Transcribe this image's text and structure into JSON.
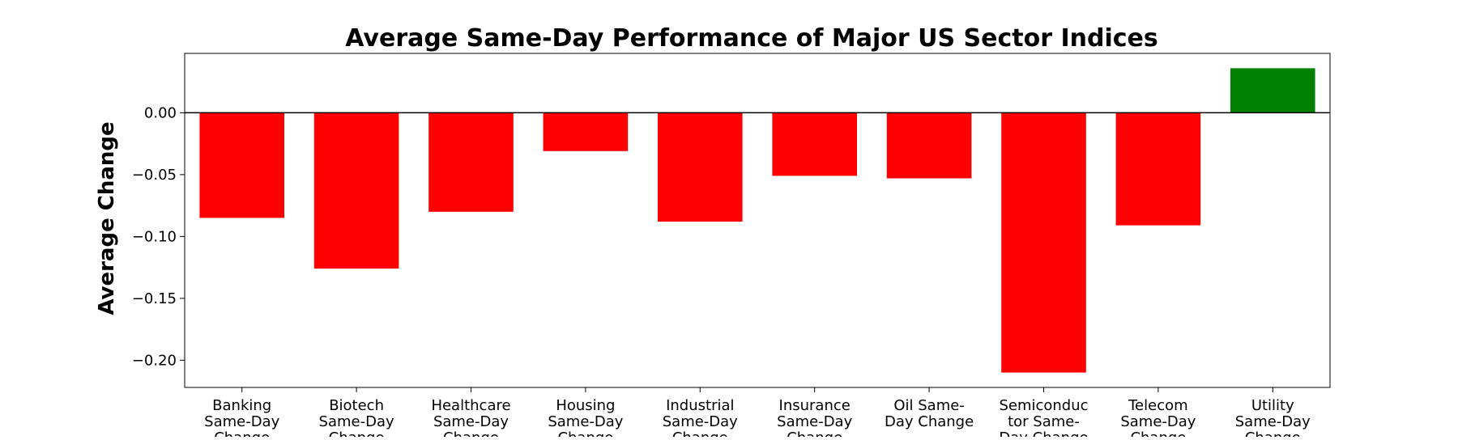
{
  "chart_data": {
    "type": "bar",
    "title": "Average Same-Day Performance of Major US Sector Indices",
    "xlabel": "",
    "ylabel": "Average Change",
    "ylim": [
      -0.222,
      0.048
    ],
    "yticks": [
      0.0,
      -0.05,
      -0.1,
      -0.15,
      -0.2
    ],
    "ytick_labels": [
      "0.00",
      "−0.05",
      "−0.10",
      "−0.15",
      "−0.20"
    ],
    "grid": false,
    "categories": [
      [
        "Banking",
        "Same-Day",
        "Change"
      ],
      [
        "Biotech",
        "Same-Day",
        "Change"
      ],
      [
        "Healthcare",
        "Same-Day",
        "Change"
      ],
      [
        "Housing",
        "Same-Day",
        "Change"
      ],
      [
        "Industrial",
        "Same-Day",
        "Change"
      ],
      [
        "Insurance",
        "Same-Day",
        "Change"
      ],
      [
        "Oil Same-",
        "Day Change"
      ],
      [
        "Semiconduc",
        "tor Same-",
        "Day Change"
      ],
      [
        "Telecom",
        "Same-Day",
        "Change"
      ],
      [
        "Utility",
        "Same-Day",
        "Change"
      ]
    ],
    "values": [
      -0.085,
      -0.126,
      -0.08,
      -0.031,
      -0.088,
      -0.051,
      -0.053,
      -0.21,
      -0.091,
      0.036
    ],
    "colors": {
      "negative": "#ff0000",
      "positive": "#008000",
      "zero_line": "#000000"
    }
  }
}
